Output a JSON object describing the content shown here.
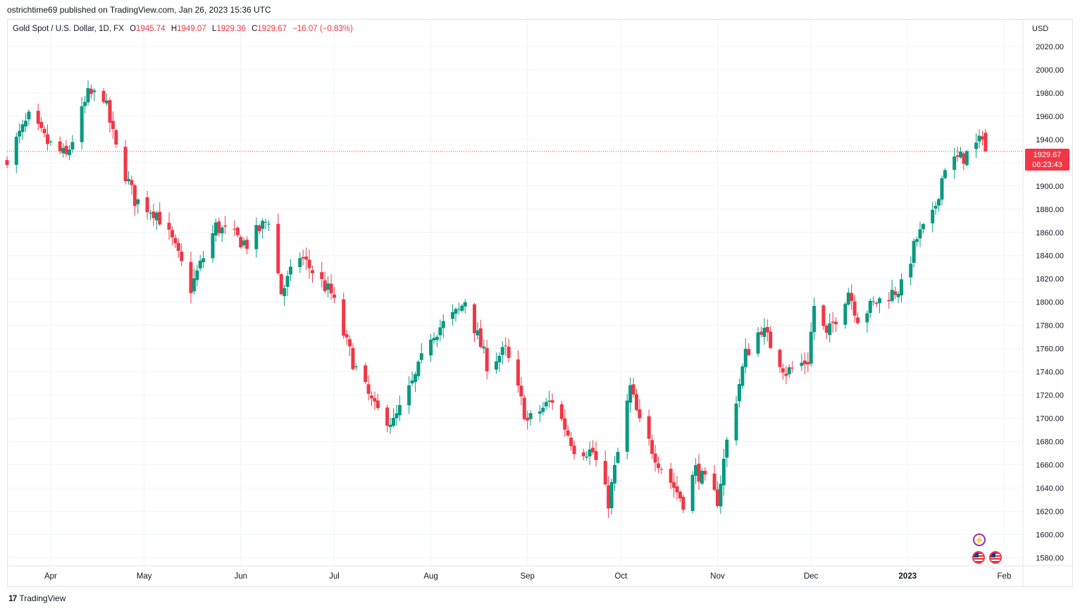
{
  "publisher_line": "ostrichtime69 published on TradingView.com, Jan 26, 2023 15:36 UTC",
  "legend": {
    "symbol": "Gold Spot / U.S. Dollar, 1D, FX",
    "o_label": "O",
    "o_value": "1945.74",
    "h_label": "H",
    "h_value": "1949.07",
    "l_label": "L",
    "l_value": "1929.36",
    "c_label": "C",
    "c_value": "1929.67",
    "change": "−16.07 (−0.83%)"
  },
  "currency": "USD",
  "last_price": {
    "price": "1929.67",
    "countdown": "06:23:43",
    "value": 1929.67
  },
  "footer": {
    "logo_mark": "17",
    "brand": "TradingView"
  },
  "colors": {
    "up": "#089981",
    "down": "#f23645",
    "grid": "#f0f3fa",
    "axis_text": "#131722",
    "event_flash": "#9c27b0"
  },
  "icons": {
    "events": [
      "lightning-icon",
      "us-flag-icon",
      "us-flag-icon"
    ]
  },
  "chart_data": {
    "type": "candlestick",
    "title": "Gold Spot / U.S. Dollar, 1D, FX",
    "interval": "1D",
    "y_axis": {
      "side": "right",
      "unit": "USD",
      "ylim": [
        1573,
        2043
      ],
      "ticks": [
        "2020.00",
        "2000.00",
        "1980.00",
        "1960.00",
        "1940.00",
        "1920.00",
        "1900.00",
        "1880.00",
        "1860.00",
        "1840.00",
        "1820.00",
        "1800.00",
        "1780.00",
        "1760.00",
        "1740.00",
        "1720.00",
        "1700.00",
        "1680.00",
        "1660.00",
        "1640.00",
        "1620.00",
        "1600.00",
        "1580.00"
      ]
    },
    "x_axis": {
      "range": [
        "2022-03-18",
        "2023-02-07"
      ],
      "ticks": [
        {
          "label": "Apr",
          "date": "2022-04-01",
          "bold": false
        },
        {
          "label": "May",
          "date": "2022-05-01",
          "bold": false
        },
        {
          "label": "Jun",
          "date": "2022-06-01",
          "bold": false
        },
        {
          "label": "Jul",
          "date": "2022-07-01",
          "bold": false
        },
        {
          "label": "Aug",
          "date": "2022-08-01",
          "bold": false
        },
        {
          "label": "Sep",
          "date": "2022-09-01",
          "bold": false
        },
        {
          "label": "Oct",
          "date": "2022-10-01",
          "bold": false
        },
        {
          "label": "Nov",
          "date": "2022-11-01",
          "bold": false
        },
        {
          "label": "Dec",
          "date": "2022-12-01",
          "bold": false
        },
        {
          "label": "2023",
          "date": "2023-01-01",
          "bold": true
        },
        {
          "label": "Feb",
          "date": "2023-02-01",
          "bold": false
        }
      ]
    },
    "grid": true,
    "last_price_line": 1929.67,
    "anchors": [
      {
        "date": "2022-03-18",
        "close": 1925
      },
      {
        "date": "2022-03-25",
        "close": 1958
      },
      {
        "date": "2022-03-31",
        "close": 1937
      },
      {
        "date": "2022-04-06",
        "close": 1925
      },
      {
        "date": "2022-04-13",
        "close": 1978
      },
      {
        "date": "2022-04-18",
        "close": 1978
      },
      {
        "date": "2022-04-22",
        "close": 1932
      },
      {
        "date": "2022-04-28",
        "close": 1888
      },
      {
        "date": "2022-05-05",
        "close": 1877
      },
      {
        "date": "2022-05-10",
        "close": 1852
      },
      {
        "date": "2022-05-16",
        "close": 1812
      },
      {
        "date": "2022-05-24",
        "close": 1865
      },
      {
        "date": "2022-06-03",
        "close": 1850
      },
      {
        "date": "2022-06-10",
        "close": 1872
      },
      {
        "date": "2022-06-14",
        "close": 1808
      },
      {
        "date": "2022-06-20",
        "close": 1840
      },
      {
        "date": "2022-06-30",
        "close": 1807
      },
      {
        "date": "2022-07-05",
        "close": 1764
      },
      {
        "date": "2022-07-08",
        "close": 1742
      },
      {
        "date": "2022-07-14",
        "close": 1708
      },
      {
        "date": "2022-07-20",
        "close": 1696
      },
      {
        "date": "2022-07-27",
        "close": 1735
      },
      {
        "date": "2022-08-01",
        "close": 1772
      },
      {
        "date": "2022-08-10",
        "close": 1792
      },
      {
        "date": "2022-08-12",
        "close": 1802
      },
      {
        "date": "2022-08-19",
        "close": 1747
      },
      {
        "date": "2022-08-25",
        "close": 1758
      },
      {
        "date": "2022-09-01",
        "close": 1697
      },
      {
        "date": "2022-09-09",
        "close": 1716
      },
      {
        "date": "2022-09-16",
        "close": 1675
      },
      {
        "date": "2022-09-22",
        "close": 1671
      },
      {
        "date": "2022-09-27",
        "close": 1628
      },
      {
        "date": "2022-10-04",
        "close": 1726
      },
      {
        "date": "2022-10-07",
        "close": 1695
      },
      {
        "date": "2022-10-13",
        "close": 1663
      },
      {
        "date": "2022-10-21",
        "close": 1628
      },
      {
        "date": "2022-10-25",
        "close": 1656
      },
      {
        "date": "2022-11-01",
        "close": 1630
      },
      {
        "date": "2022-11-04",
        "close": 1680
      },
      {
        "date": "2022-11-10",
        "close": 1755
      },
      {
        "date": "2022-11-15",
        "close": 1778
      },
      {
        "date": "2022-11-23",
        "close": 1740
      },
      {
        "date": "2022-11-30",
        "close": 1750
      },
      {
        "date": "2022-12-02",
        "close": 1797
      },
      {
        "date": "2022-12-06",
        "close": 1770
      },
      {
        "date": "2022-12-13",
        "close": 1810
      },
      {
        "date": "2022-12-16",
        "close": 1787
      },
      {
        "date": "2022-12-22",
        "close": 1800
      },
      {
        "date": "2022-12-30",
        "close": 1813
      },
      {
        "date": "2023-01-04",
        "close": 1855
      },
      {
        "date": "2023-01-09",
        "close": 1873
      },
      {
        "date": "2023-01-13",
        "close": 1918
      },
      {
        "date": "2023-01-19",
        "close": 1925
      },
      {
        "date": "2023-01-24",
        "close": 1937
      },
      {
        "date": "2023-01-25",
        "close": 1946
      },
      {
        "date": "2023-01-26",
        "close": 1929.67
      }
    ],
    "last_candle": {
      "date": "2023-01-26",
      "open": 1945.74,
      "high": 1949.07,
      "low": 1929.36,
      "close": 1929.67
    }
  }
}
